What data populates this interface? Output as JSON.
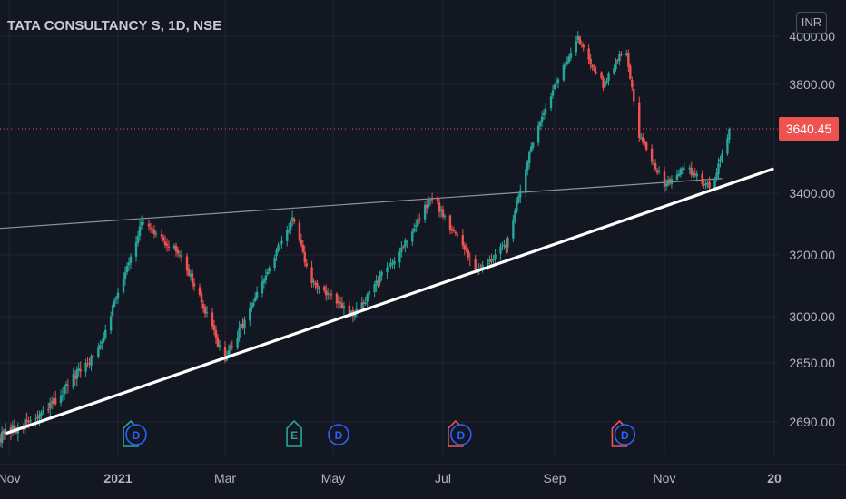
{
  "chart_title": "TATA CONSULTANCY S, 1D, NSE",
  "currency_button": "INR",
  "colors": {
    "background": "#131722",
    "up": "#26a69a",
    "down": "#ef5350",
    "grid": "#1f2433",
    "axis_text": "#b2b5be",
    "trendline": "#ffffff",
    "resistance_line": "#8f939e",
    "price_tag": "#ef5350"
  },
  "chart_data": {
    "type": "candlestick",
    "title": "TATA CONSULTANCY S, 1D, NSE",
    "x_ticks": [
      "Nov",
      "2021",
      "Mar",
      "May",
      "Jul",
      "Sep",
      "Nov",
      "20"
    ],
    "y_ticks": [
      2690,
      2850,
      3000,
      3200,
      3400,
      3800,
      4000
    ],
    "y_tick_labels": [
      "2690.00",
      "2850.00",
      "3000.00",
      "3200.00",
      "3400.00",
      "3800.00",
      "4000.00"
    ],
    "ylim": [
      2620,
      4060
    ],
    "last_price": 3640.45,
    "last_price_label": "3640.45",
    "grid": true,
    "series_path": [
      {
        "date": "2020-10-27",
        "close": 2650
      },
      {
        "date": "2020-11-20",
        "close": 2710
      },
      {
        "date": "2020-12-20",
        "close": 2880
      },
      {
        "date": "2021-01-05",
        "close": 3150
      },
      {
        "date": "2021-01-14",
        "close": 3300
      },
      {
        "date": "2021-02-05",
        "close": 3200
      },
      {
        "date": "2021-03-01",
        "close": 2860
      },
      {
        "date": "2021-03-20",
        "close": 3080
      },
      {
        "date": "2021-04-08",
        "close": 3320
      },
      {
        "date": "2021-04-18",
        "close": 3120
      },
      {
        "date": "2021-05-12",
        "close": 3000
      },
      {
        "date": "2021-06-10",
        "close": 3240
      },
      {
        "date": "2021-06-25",
        "close": 3390
      },
      {
        "date": "2021-07-20",
        "close": 3150
      },
      {
        "date": "2021-08-05",
        "close": 3230
      },
      {
        "date": "2021-08-23",
        "close": 3660
      },
      {
        "date": "2021-09-14",
        "close": 3990
      },
      {
        "date": "2021-09-28",
        "close": 3800
      },
      {
        "date": "2021-10-10",
        "close": 3960
      },
      {
        "date": "2021-10-18",
        "close": 3620
      },
      {
        "date": "2021-11-01",
        "close": 3430
      },
      {
        "date": "2021-11-12",
        "close": 3500
      },
      {
        "date": "2021-11-27",
        "close": 3420
      },
      {
        "date": "2021-12-07",
        "close": 3640
      }
    ],
    "trendlines": [
      {
        "name": "support",
        "from": {
          "date": "2020-10-31",
          "price": 2660
        },
        "to": {
          "date": "2021-12-31",
          "price": 3490
        }
      },
      {
        "name": "resistance",
        "from": {
          "date": "2020-10-24",
          "price": 3285
        },
        "to": {
          "date": "2021-12-03",
          "price": 3455
        }
      }
    ],
    "event_markers": [
      {
        "type": "E",
        "date": "2021-01-08",
        "color": "#26a69a"
      },
      {
        "type": "D",
        "date": "2021-01-11",
        "color": "#2962ff"
      },
      {
        "type": "E",
        "date": "2021-04-09",
        "color": "#26a69a"
      },
      {
        "type": "D",
        "date": "2021-05-04",
        "color": "#2962ff"
      },
      {
        "type": "E",
        "date": "2021-07-08",
        "color": "#ef5350"
      },
      {
        "type": "D",
        "date": "2021-07-11",
        "color": "#2962ff"
      },
      {
        "type": "E",
        "date": "2021-10-07",
        "color": "#ef5350"
      },
      {
        "type": "D",
        "date": "2021-10-10",
        "color": "#2962ff"
      }
    ]
  }
}
